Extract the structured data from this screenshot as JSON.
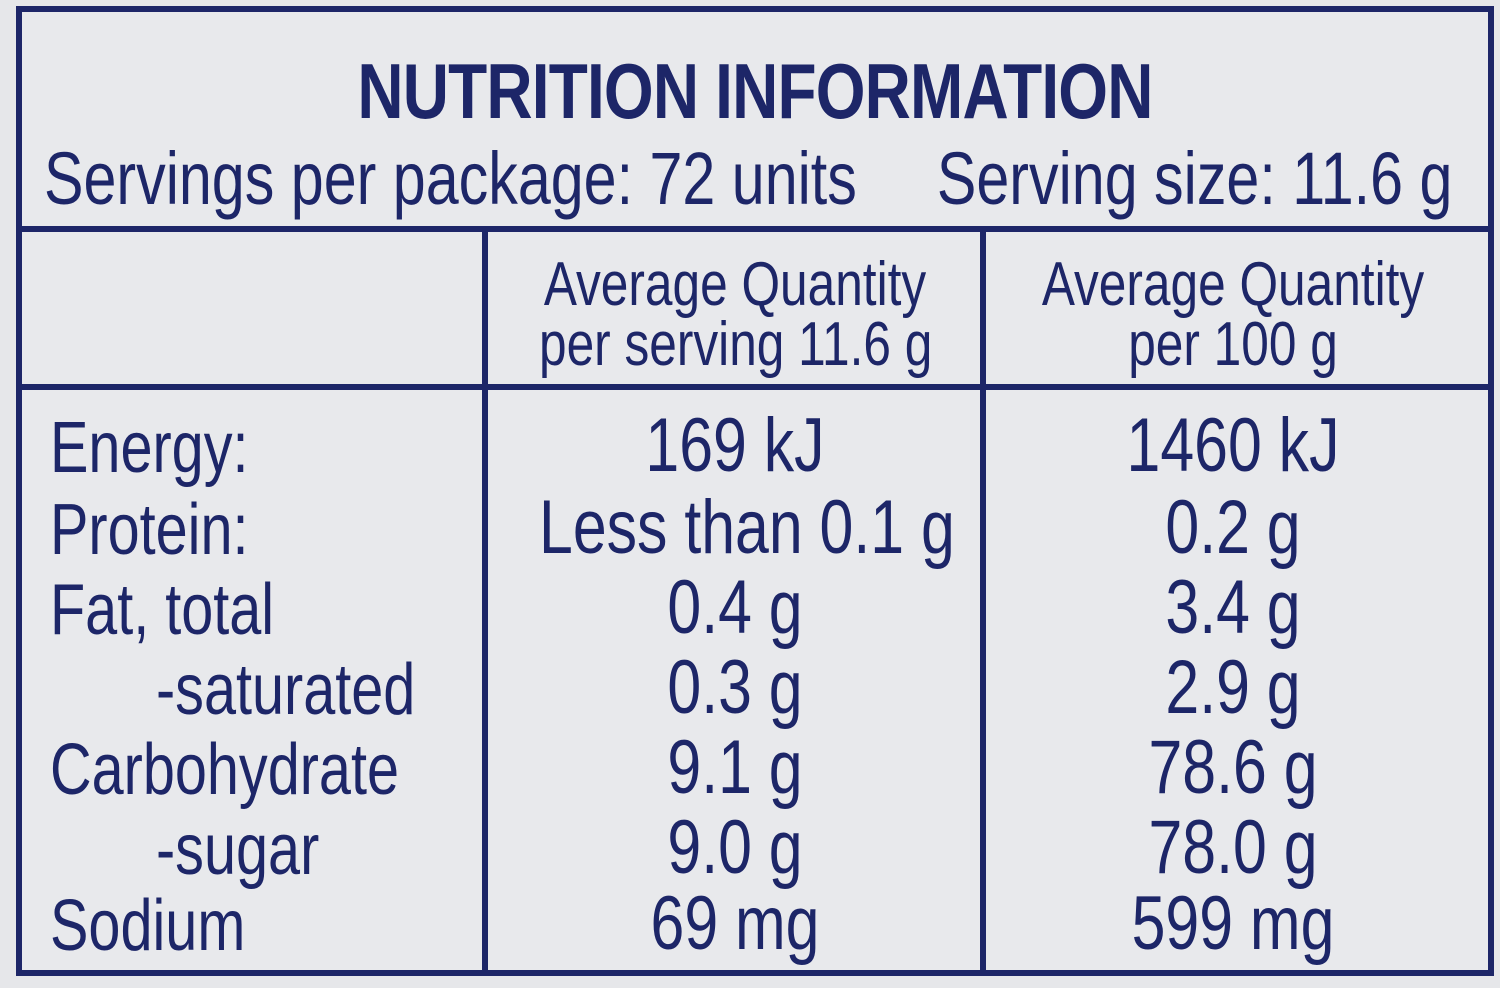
{
  "title": "NUTRITION INFORMATION",
  "servings_per_package": "Servings per package: 72 units",
  "serving_size": "Serving size: 11.6 g",
  "columns": {
    "per_serving_line1": "Average Quantity",
    "per_serving_line2": "per serving 11.6 g",
    "per_100_line1": "Average Quantity",
    "per_100_line2": "per 100 g"
  },
  "rows": [
    {
      "label": "Energy:",
      "per_serving": "169 kJ",
      "per_100": "1460 kJ"
    },
    {
      "label": "Protein:",
      "per_serving": "Less than 0.1 g",
      "per_100": "0.2 g"
    },
    {
      "label": "Fat, total",
      "per_serving": "0.4 g",
      "per_100": "3.4 g"
    },
    {
      "label": "-saturated",
      "per_serving": "0.3 g",
      "per_100": "2.9 g"
    },
    {
      "label": "Carbohydrate",
      "per_serving": "9.1 g",
      "per_100": "78.6 g"
    },
    {
      "label": "-sugar",
      "per_serving": "9.0 g",
      "per_100": "78.0 g"
    },
    {
      "label": "Sodium",
      "per_serving": "69 mg",
      "per_100": "599 mg"
    }
  ],
  "colors": {
    "ink": "#1d2668",
    "background": "#e8e9ec"
  }
}
